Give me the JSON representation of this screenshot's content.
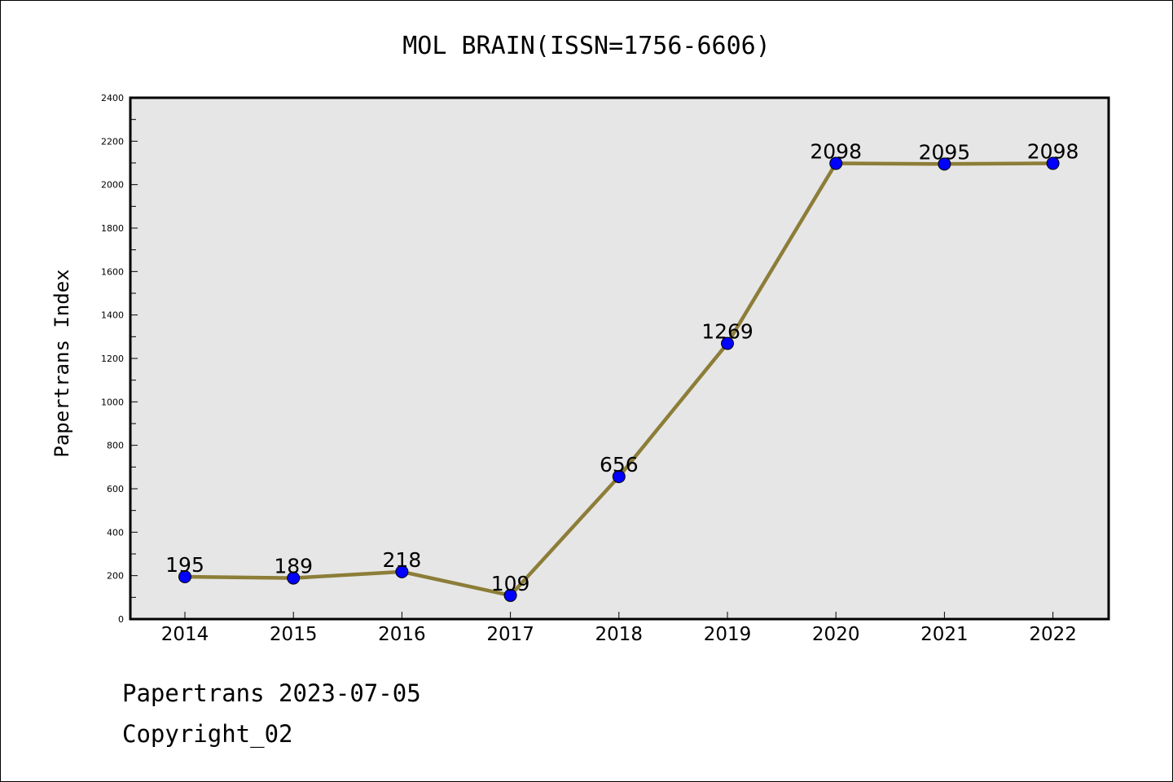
{
  "chart_data": {
    "type": "line",
    "title": "MOL BRAIN(ISSN=1756-6606)",
    "xlabel": "",
    "ylabel": "Papertrans Index",
    "categories": [
      "2014",
      "2015",
      "2016",
      "2017",
      "2018",
      "2019",
      "2020",
      "2021",
      "2022"
    ],
    "values": [
      195,
      189,
      218,
      109,
      656,
      1269,
      2098,
      2095,
      2098
    ],
    "data_labels": [
      "195",
      "189",
      "218",
      "109",
      "656",
      "1269",
      "2098",
      "2095",
      "2098"
    ],
    "ylim": [
      0,
      2400
    ],
    "yticks": [
      0,
      200,
      400,
      600,
      800,
      1000,
      1200,
      1400,
      1600,
      1800,
      2000,
      2200,
      2400
    ],
    "grid": false,
    "legend": "none",
    "colors": {
      "line": "#8c7d38",
      "marker": "#0000ff",
      "plot_background": "#e6e6e6"
    }
  },
  "footer": {
    "date_line": "Papertrans 2023-07-05",
    "copyright_line": "Copyright_02"
  }
}
